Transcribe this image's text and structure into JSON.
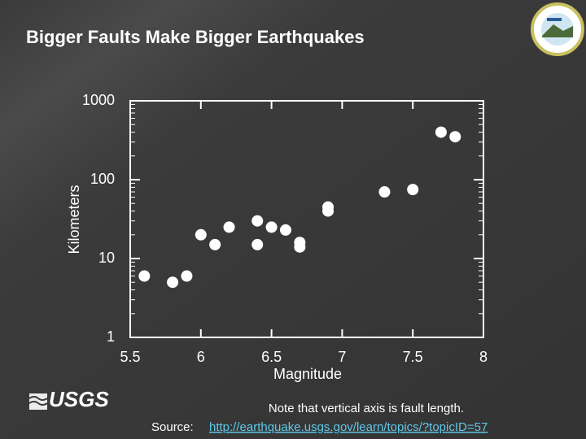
{
  "chart_data": {
    "type": "scatter",
    "title": "Bigger Faults Make Bigger Earthquakes",
    "x_label": "Magnitude",
    "y_label": "Kilometers",
    "x": [
      5.6,
      5.8,
      5.9,
      6.0,
      6.1,
      6.2,
      6.4,
      6.4,
      6.5,
      6.6,
      6.7,
      6.7,
      6.9,
      6.9,
      7.3,
      7.5,
      7.7,
      7.8
    ],
    "values": [
      6,
      5,
      6,
      20,
      15,
      25,
      30,
      15,
      25,
      23,
      16,
      14,
      45,
      40,
      70,
      75,
      400,
      350
    ],
    "color": "#ffffff",
    "xlim": [
      5.5,
      8
    ],
    "xticks": [
      5.5,
      6,
      6.5,
      7,
      7.5,
      8
    ],
    "ylim": [
      1,
      1000
    ],
    "yticks": [
      1,
      10,
      100,
      1000
    ],
    "y_scale": "log",
    "yminorticks": [
      2,
      3,
      4,
      5,
      6,
      7,
      8,
      9,
      20,
      30,
      40,
      50,
      60,
      70,
      80,
      90,
      200,
      300,
      400,
      500,
      600,
      700,
      800,
      900
    ]
  },
  "logo_text": "USGS",
  "note": "Note that vertical axis is fault length.",
  "source_label": "Source:",
  "source_url": "http://earthquake.usgs.gov/learn/topics/?topicID=57"
}
